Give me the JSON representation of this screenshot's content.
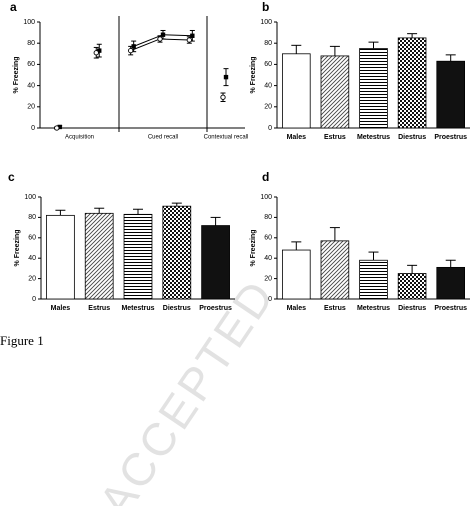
{
  "chart_data": [
    {
      "type": "line",
      "panel": "a",
      "ylabel": "% Freezing",
      "ylim": [
        0,
        100
      ],
      "yticks": [
        0,
        20,
        40,
        60,
        80,
        100
      ],
      "sections": [
        "Acquisition",
        "Cued recall",
        "Contextual recall"
      ],
      "categories": [
        null,
        null,
        null,
        null,
        null,
        null
      ],
      "series": [
        {
          "color": "#000000",
          "marker": "filled",
          "values": [
            1,
            73,
            77,
            88,
            87,
            48
          ],
          "errors": [
            1,
            6,
            5,
            4,
            5,
            8
          ]
        },
        {
          "color": "#000000",
          "marker": "open",
          "values": [
            0,
            71,
            73,
            84,
            83,
            29
          ],
          "errors": [
            1,
            5,
            4,
            3,
            3,
            4
          ]
        }
      ]
    },
    {
      "type": "bar",
      "panel": "b",
      "ylabel": "% Freezing",
      "ylim": [
        0,
        100
      ],
      "yticks": [
        0,
        20,
        40,
        60,
        80,
        100
      ],
      "categories": [
        "Males",
        "Estrus",
        "Metestrus",
        "Diestrus",
        "Proestrus"
      ],
      "fills": [
        "white",
        "diagonal",
        "horizontal",
        "checker",
        "black"
      ],
      "values": [
        70,
        68,
        75,
        85,
        63
      ],
      "errors": [
        8,
        9,
        6,
        4,
        6
      ]
    },
    {
      "type": "bar",
      "panel": "c",
      "ylabel": "% Freezing",
      "ylim": [
        0,
        100
      ],
      "yticks": [
        0,
        20,
        40,
        60,
        80,
        100
      ],
      "categories": [
        "Males",
        "Estrus",
        "Metestrus",
        "Diestrus",
        "Proestrus"
      ],
      "fills": [
        "white",
        "diagonal",
        "horizontal",
        "checker",
        "black"
      ],
      "values": [
        82,
        84,
        83,
        91,
        72
      ],
      "errors": [
        5,
        5,
        5,
        3,
        8
      ]
    },
    {
      "type": "bar",
      "panel": "d",
      "ylabel": "% Freezing",
      "ylim": [
        0,
        100
      ],
      "yticks": [
        0,
        20,
        40,
        60,
        80,
        100
      ],
      "categories": [
        "Males",
        "Estrus",
        "Metestrus",
        "Diestrus",
        "Proestrus"
      ],
      "fills": [
        "white",
        "diagonal",
        "horizontal",
        "checker",
        "black"
      ],
      "values": [
        48,
        57,
        38,
        25,
        31
      ],
      "errors": [
        8,
        13,
        8,
        8,
        7
      ]
    }
  ],
  "caption": "Figure 1",
  "watermark": "ACCEPTED"
}
